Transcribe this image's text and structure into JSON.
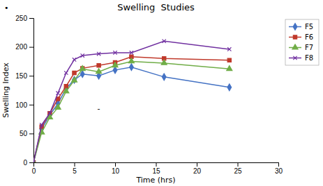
{
  "chart_data": {
    "type": "line",
    "title": "Swelling  Studies",
    "x_label": "Time (hrs)",
    "y_label": "Swelling Index",
    "x": [
      0,
      1,
      2,
      3,
      4,
      5,
      6,
      8,
      10,
      12,
      16,
      24
    ],
    "xlim": [
      0,
      30
    ],
    "ylim": [
      0,
      250
    ],
    "xticks": [
      0,
      5,
      10,
      15,
      20,
      25,
      30
    ],
    "yticks": [
      0,
      50,
      100,
      150,
      200,
      250
    ],
    "grid": false,
    "legend": "right",
    "series": [
      {
        "name": "F5",
        "color": "#4472C4",
        "marker": "diamond",
        "values": [
          0,
          58,
          82,
          102,
          128,
          143,
          153,
          150,
          160,
          165,
          148,
          130
        ]
      },
      {
        "name": "F6",
        "color": "#C0392B",
        "marker": "square",
        "values": [
          0,
          62,
          85,
          110,
          132,
          155,
          163,
          168,
          173,
          183,
          180,
          177
        ]
      },
      {
        "name": "F7",
        "color": "#70AD47",
        "marker": "triangle",
        "values": [
          0,
          52,
          78,
          95,
          123,
          142,
          162,
          157,
          168,
          175,
          172,
          162
        ]
      },
      {
        "name": "F8",
        "color": "#7030A0",
        "marker": "x",
        "values": [
          0,
          65,
          85,
          120,
          155,
          178,
          185,
          188,
          190,
          190,
          210,
          196
        ]
      }
    ],
    "annotations": [
      {
        "text": "-",
        "x": 8,
        "y": 93
      },
      {
        "text": "•"
      }
    ]
  }
}
